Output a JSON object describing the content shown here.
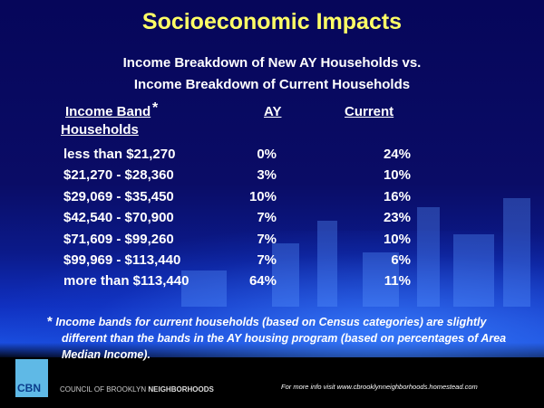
{
  "title": "Socioeconomic Impacts",
  "subtitle_1": "Income Breakdown of New AY Households  vs.",
  "subtitle_2": "Income Breakdown of Current Households",
  "table": {
    "headers": {
      "band": "Income Band ",
      "band_star": "*",
      "band_line2": "Households",
      "ay": "AY",
      "current": "Current"
    },
    "rows": [
      {
        "band": "less than $21,270",
        "ay": "0%",
        "current": "24%"
      },
      {
        "band": "$21,270 - $28,360",
        "ay": "3%",
        "current": "10%"
      },
      {
        "band": "$29,069 - $35,450",
        "ay": "10%",
        "current": "16%"
      },
      {
        "band": "$42,540 - $70,900",
        "ay": "7%",
        "current": "23%"
      },
      {
        "band": "$71,609 - $99,260",
        "ay": "7%",
        "current": "10%"
      },
      {
        "band": "$99,969 - $113,440",
        "ay": "7%",
        "current": "6%"
      },
      {
        "band": "more than $113,440",
        "ay": "64%",
        "current": "11%"
      }
    ]
  },
  "footnote": {
    "star": "*",
    "line1": "Income bands for current households (based on  Census categories) are slightly",
    "line2": "different than the bands in the AY housing program (based on percentages of Area",
    "line3": "Median Income)."
  },
  "footer": {
    "logo": "CBN",
    "org_prefix": "COUNCIL OF BROOKLYN ",
    "org_bold": "NEIGHBORHOODS",
    "info": "For more info visit www.cbrooklynneighborhoods.homestead.com"
  },
  "colors": {
    "title": "#ffff66",
    "background": "#06065a",
    "logo": "#5fb9e6"
  }
}
